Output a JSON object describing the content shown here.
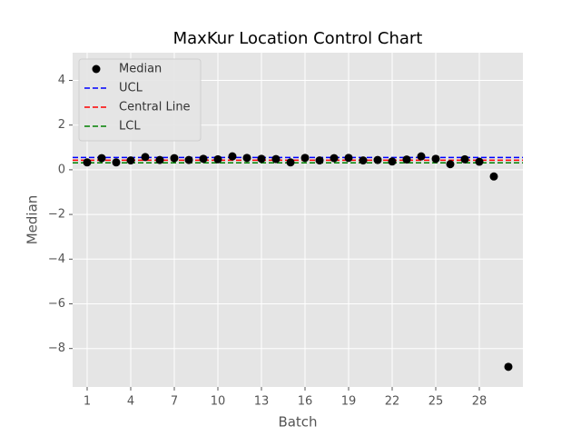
{
  "chart_data": {
    "type": "scatter",
    "title": "MaxKur Location Control Chart",
    "xlabel": "Batch",
    "ylabel": "Median",
    "x": [
      1,
      2,
      3,
      4,
      5,
      6,
      7,
      8,
      9,
      10,
      11,
      12,
      13,
      14,
      15,
      16,
      17,
      18,
      19,
      20,
      21,
      22,
      23,
      24,
      25,
      26,
      27,
      28,
      29,
      30
    ],
    "series": [
      {
        "name": "Median",
        "color": "#000000",
        "values": [
          0.33,
          0.52,
          0.33,
          0.42,
          0.57,
          0.44,
          0.52,
          0.44,
          0.49,
          0.47,
          0.6,
          0.53,
          0.49,
          0.48,
          0.33,
          0.53,
          0.42,
          0.52,
          0.53,
          0.42,
          0.44,
          0.37,
          0.46,
          0.6,
          0.49,
          0.25,
          0.47,
          0.36,
          -0.3,
          -8.82
        ]
      }
    ],
    "hlines": [
      {
        "name": "UCL",
        "color": "#0000ff",
        "value": 0.55
      },
      {
        "name": "Central Line",
        "color": "#ff0000",
        "value": 0.43
      },
      {
        "name": "LCL",
        "color": "#008000",
        "value": 0.31
      }
    ],
    "xlim": [
      0,
      31
    ],
    "xticks": [
      1,
      4,
      7,
      10,
      13,
      16,
      19,
      22,
      25,
      28
    ],
    "ylim": [
      -9.72,
      5.24
    ],
    "yticks": [
      {
        "value": -8,
        "label": "−8"
      },
      {
        "value": -6,
        "label": "−6"
      },
      {
        "value": -4,
        "label": "−4"
      },
      {
        "value": -2,
        "label": "−2"
      },
      0,
      2,
      4
    ],
    "grid": true,
    "legend": "upper left"
  }
}
